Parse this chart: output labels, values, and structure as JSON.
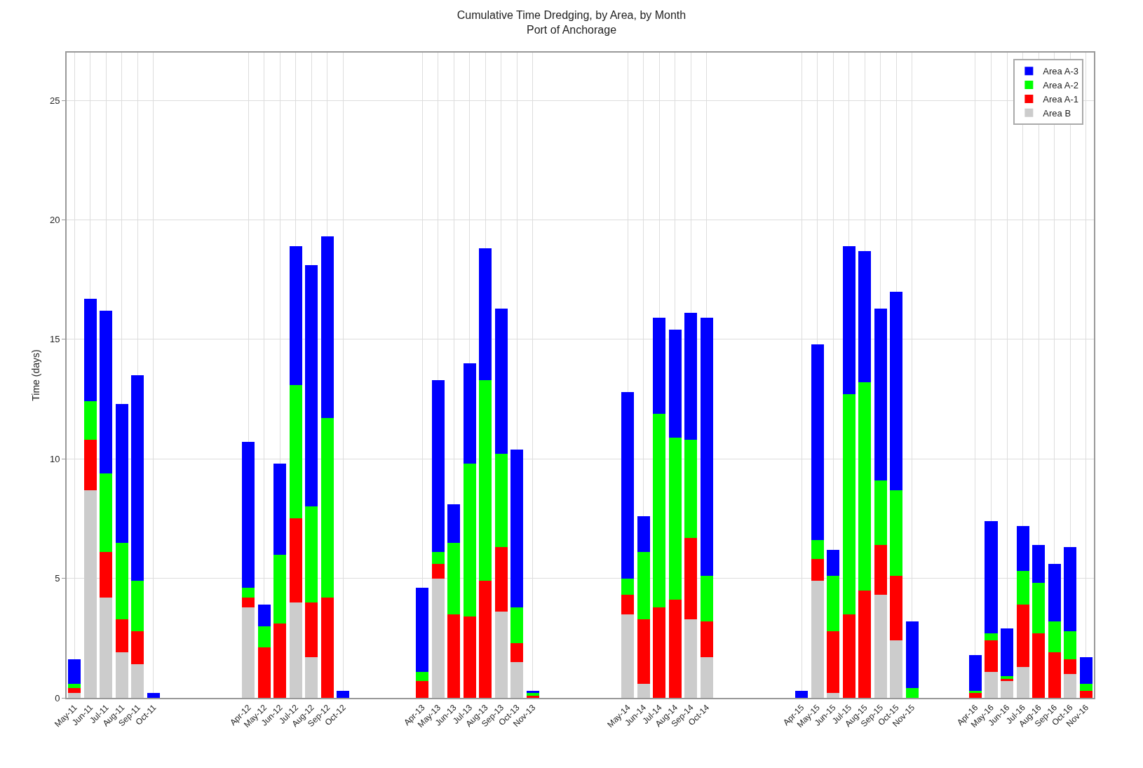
{
  "chart_data": {
    "type": "bar",
    "title": "Cumulative Time Dredging, by Area, by Month",
    "subtitle": "Port of Anchorage",
    "ylabel": "Time (days)",
    "stacked": true,
    "grid": true,
    "legend": "top right",
    "categories": [
      "May-11",
      "Jun-11",
      "Jul-11",
      "Aug-11",
      "Sep-11",
      "Oct-11",
      null,
      null,
      null,
      null,
      null,
      "Apr-12",
      "May-12",
      "Jun-12",
      "Jul-12",
      "Aug-12",
      "Sep-12",
      "Oct-12",
      null,
      null,
      null,
      null,
      "Apr-13",
      "May-13",
      "Jun-13",
      "Jul-13",
      "Aug-13",
      "Sep-13",
      "Oct-13",
      "Nov-13",
      null,
      null,
      null,
      null,
      null,
      "May-14",
      "Jun-14",
      "Jul-14",
      "Aug-14",
      "Sep-14",
      "Oct-14",
      null,
      null,
      null,
      null,
      null,
      "Apr-15",
      "May-15",
      "Jun-15",
      "Jul-15",
      "Aug-15",
      "Sep-15",
      "Oct-15",
      "Nov-15",
      null,
      null,
      null,
      "Apr-16",
      "May-16",
      "Jun-16",
      "Jul-16",
      "Aug-16",
      "Sep-16",
      "Oct-16",
      "Nov-16"
    ],
    "ylim": [
      0,
      27
    ],
    "yticks": [
      0,
      5,
      10,
      15,
      20,
      25
    ],
    "series": [
      {
        "name": "Area B",
        "color": "#cccccc",
        "values": [
          0.2,
          8.7,
          4.2,
          1.9,
          1.4,
          0,
          null,
          null,
          null,
          null,
          null,
          3.8,
          0,
          0,
          4.0,
          1.7,
          0,
          0,
          null,
          null,
          null,
          null,
          0,
          5.0,
          0,
          0,
          0,
          3.6,
          1.5,
          0,
          null,
          null,
          null,
          null,
          null,
          3.5,
          0.6,
          0,
          0,
          3.3,
          1.7,
          null,
          null,
          null,
          null,
          null,
          0,
          4.9,
          0.2,
          0,
          0,
          4.3,
          2.4,
          0,
          null,
          null,
          null,
          0,
          1.1,
          0.7,
          1.3,
          0,
          0,
          1.0,
          0
        ]
      },
      {
        "name": "Area A-1",
        "color": "#ff0000",
        "values": [
          0.2,
          2.1,
          1.9,
          1.4,
          1.4,
          0,
          null,
          null,
          null,
          null,
          null,
          0.4,
          2.1,
          3.1,
          3.5,
          2.3,
          4.2,
          0,
          null,
          null,
          null,
          null,
          0.7,
          0.6,
          3.5,
          3.4,
          4.9,
          2.7,
          0.8,
          0.1,
          null,
          null,
          null,
          null,
          null,
          0.8,
          2.7,
          3.8,
          4.1,
          3.4,
          1.5,
          null,
          null,
          null,
          null,
          null,
          0,
          0.9,
          2.6,
          3.5,
          4.5,
          2.1,
          2.7,
          0,
          null,
          null,
          null,
          0.2,
          1.3,
          0.1,
          2.6,
          2.7,
          1.9,
          0.6,
          0.3
        ]
      },
      {
        "name": "Area A-2",
        "color": "#00ff00",
        "values": [
          0.2,
          1.6,
          3.3,
          3.2,
          2.1,
          0,
          null,
          null,
          null,
          null,
          null,
          0.4,
          0.9,
          2.9,
          5.6,
          4.0,
          7.5,
          0,
          null,
          null,
          null,
          null,
          0.4,
          0.5,
          3.0,
          6.4,
          8.4,
          3.9,
          1.5,
          0.1,
          null,
          null,
          null,
          null,
          null,
          0.7,
          2.8,
          8.1,
          6.8,
          4.1,
          1.9,
          null,
          null,
          null,
          null,
          null,
          0,
          0.8,
          2.3,
          9.2,
          8.7,
          2.7,
          3.6,
          0.4,
          null,
          null,
          null,
          0.1,
          0.3,
          0.1,
          1.4,
          2.1,
          1.3,
          1.2,
          0.3
        ]
      },
      {
        "name": "Area A-3",
        "color": "#0000ff",
        "values": [
          1.0,
          4.3,
          6.8,
          5.8,
          8.6,
          0.2,
          null,
          null,
          null,
          null,
          null,
          6.1,
          0.9,
          3.8,
          5.8,
          10.1,
          7.6,
          0.3,
          null,
          null,
          null,
          null,
          3.5,
          7.2,
          1.6,
          4.2,
          5.5,
          6.1,
          6.6,
          0.1,
          null,
          null,
          null,
          null,
          null,
          7.8,
          1.5,
          4.0,
          4.5,
          5.3,
          10.8,
          null,
          null,
          null,
          null,
          null,
          0.3,
          8.2,
          1.1,
          6.2,
          5.5,
          7.2,
          8.3,
          2.8,
          null,
          null,
          null,
          1.5,
          4.7,
          2.0,
          1.9,
          1.6,
          2.4,
          3.5,
          1.1
        ]
      }
    ]
  }
}
